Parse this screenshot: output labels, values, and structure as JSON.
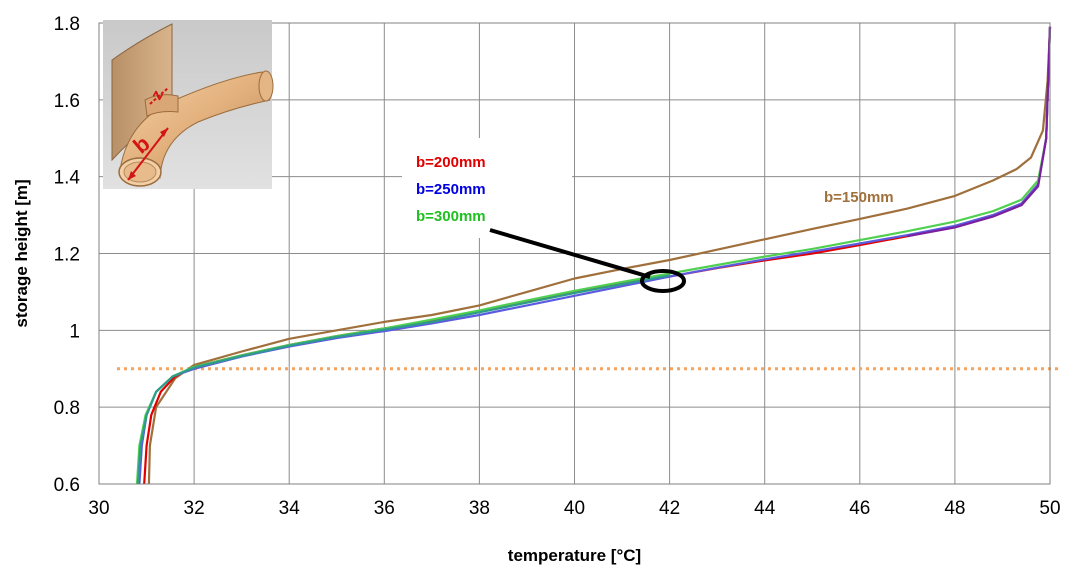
{
  "chart_data": {
    "type": "line",
    "xlabel": "temperature [°C]",
    "ylabel": "storage height [m]",
    "xlim": [
      30,
      50
    ],
    "ylim": [
      0.6,
      1.8
    ],
    "xticks": [
      "30",
      "32",
      "34",
      "36",
      "38",
      "40",
      "42",
      "44",
      "46",
      "48",
      "50"
    ],
    "yticks": [
      "0.6",
      "0.8",
      "1",
      "1.2",
      "1.4",
      "1.6",
      "1.8"
    ],
    "grid": true,
    "reference_line": {
      "y": 0.9,
      "style": "dotted",
      "color": "#F4A460"
    },
    "series": [
      {
        "name": "b=150mm",
        "color": "#A0703C",
        "points": [
          [
            31.05,
            0.6
          ],
          [
            31.07,
            0.7
          ],
          [
            31.2,
            0.8
          ],
          [
            31.6,
            0.875
          ],
          [
            32.0,
            0.91
          ],
          [
            33.0,
            0.945
          ],
          [
            34.0,
            0.978
          ],
          [
            35.0,
            1.0
          ],
          [
            36.0,
            1.022
          ],
          [
            37.0,
            1.04
          ],
          [
            38.0,
            1.065
          ],
          [
            39.0,
            1.1
          ],
          [
            40.0,
            1.135
          ],
          [
            41.0,
            1.16
          ],
          [
            42.0,
            1.183
          ],
          [
            43.0,
            1.21
          ],
          [
            44.0,
            1.237
          ],
          [
            45.0,
            1.264
          ],
          [
            46.0,
            1.29
          ],
          [
            47.0,
            1.317
          ],
          [
            48.0,
            1.35
          ],
          [
            48.8,
            1.39
          ],
          [
            49.3,
            1.42
          ],
          [
            49.6,
            1.45
          ],
          [
            49.85,
            1.52
          ],
          [
            49.95,
            1.65
          ],
          [
            50.0,
            1.79
          ]
        ]
      },
      {
        "name": "b=200mm",
        "color": "#E00000",
        "points": [
          [
            30.95,
            0.6
          ],
          [
            31.0,
            0.7
          ],
          [
            31.1,
            0.78
          ],
          [
            31.3,
            0.84
          ],
          [
            31.6,
            0.88
          ],
          [
            32.0,
            0.905
          ],
          [
            33.0,
            0.935
          ],
          [
            34.0,
            0.962
          ],
          [
            35.0,
            0.985
          ],
          [
            36.0,
            1.005
          ],
          [
            37.0,
            1.025
          ],
          [
            38.0,
            1.05
          ],
          [
            39.0,
            1.075
          ],
          [
            40.0,
            1.1
          ],
          [
            41.0,
            1.122
          ],
          [
            42.0,
            1.14
          ],
          [
            43.0,
            1.162
          ],
          [
            44.0,
            1.182
          ],
          [
            45.0,
            1.2
          ],
          [
            46.0,
            1.222
          ],
          [
            47.0,
            1.245
          ],
          [
            48.0,
            1.27
          ],
          [
            48.8,
            1.3
          ],
          [
            49.4,
            1.33
          ],
          [
            49.75,
            1.38
          ],
          [
            49.92,
            1.5
          ],
          [
            50.0,
            1.79
          ]
        ]
      },
      {
        "name": "b=250mm",
        "color": "#5B5BE0",
        "points": [
          [
            30.85,
            0.6
          ],
          [
            30.9,
            0.7
          ],
          [
            31.0,
            0.78
          ],
          [
            31.2,
            0.84
          ],
          [
            31.55,
            0.88
          ],
          [
            32.0,
            0.9
          ],
          [
            33.0,
            0.932
          ],
          [
            34.0,
            0.958
          ],
          [
            35.0,
            0.98
          ],
          [
            36.0,
            0.998
          ],
          [
            37.0,
            1.018
          ],
          [
            38.0,
            1.04
          ],
          [
            39.0,
            1.065
          ],
          [
            40.0,
            1.09
          ],
          [
            41.0,
            1.115
          ],
          [
            42.0,
            1.14
          ],
          [
            43.0,
            1.163
          ],
          [
            44.0,
            1.185
          ],
          [
            45.0,
            1.205
          ],
          [
            46.0,
            1.226
          ],
          [
            47.0,
            1.248
          ],
          [
            48.0,
            1.272
          ],
          [
            48.8,
            1.3
          ],
          [
            49.4,
            1.33
          ],
          [
            49.75,
            1.38
          ],
          [
            49.92,
            1.5
          ],
          [
            50.0,
            1.79
          ]
        ]
      },
      {
        "name": "b=300mm",
        "color": "#50D050",
        "points": [
          [
            30.8,
            0.6
          ],
          [
            30.85,
            0.7
          ],
          [
            30.98,
            0.78
          ],
          [
            31.2,
            0.84
          ],
          [
            31.55,
            0.88
          ],
          [
            32.0,
            0.905
          ],
          [
            33.0,
            0.935
          ],
          [
            34.0,
            0.962
          ],
          [
            35.0,
            0.985
          ],
          [
            36.0,
            1.005
          ],
          [
            37.0,
            1.028
          ],
          [
            38.0,
            1.052
          ],
          [
            39.0,
            1.078
          ],
          [
            40.0,
            1.103
          ],
          [
            41.0,
            1.126
          ],
          [
            42.0,
            1.148
          ],
          [
            43.0,
            1.17
          ],
          [
            44.0,
            1.192
          ],
          [
            45.0,
            1.212
          ],
          [
            46.0,
            1.235
          ],
          [
            47.0,
            1.258
          ],
          [
            48.0,
            1.283
          ],
          [
            48.8,
            1.31
          ],
          [
            49.4,
            1.34
          ],
          [
            49.75,
            1.39
          ],
          [
            49.92,
            1.5
          ],
          [
            50.0,
            1.79
          ]
        ]
      },
      {
        "name": "",
        "color": "#7A1FA0",
        "points": [
          [
            47.0,
            1.245
          ],
          [
            48.0,
            1.268
          ],
          [
            48.8,
            1.296
          ],
          [
            49.4,
            1.326
          ],
          [
            49.75,
            1.375
          ],
          [
            49.92,
            1.5
          ],
          [
            50.0,
            1.79
          ]
        ]
      },
      {
        "name": "",
        "color": "#2E9C8A",
        "points": [
          [
            30.82,
            0.6
          ],
          [
            30.87,
            0.7
          ],
          [
            31.0,
            0.78
          ],
          [
            31.2,
            0.84
          ],
          [
            31.55,
            0.88
          ],
          [
            32.0,
            0.903
          ],
          [
            33.0,
            0.933
          ],
          [
            34.0,
            0.96
          ],
          [
            35.0,
            0.983
          ],
          [
            36.0,
            1.002
          ],
          [
            37.0,
            1.022
          ],
          [
            38.0,
            1.047
          ],
          [
            39.0,
            1.072
          ],
          [
            40.0,
            1.097
          ],
          [
            41.0,
            1.12
          ],
          [
            42.0,
            1.143
          ]
        ]
      }
    ],
    "annotations": [
      {
        "text": "b=150mm",
        "color": "#A0703C"
      },
      {
        "text": "b=200mm",
        "color": "#E00000"
      },
      {
        "text": "b=250mm",
        "color": "#0000E0"
      },
      {
        "text": "b=300mm",
        "color": "#20C020"
      }
    ],
    "inset_labels": {
      "z": "z",
      "b": "b"
    }
  }
}
